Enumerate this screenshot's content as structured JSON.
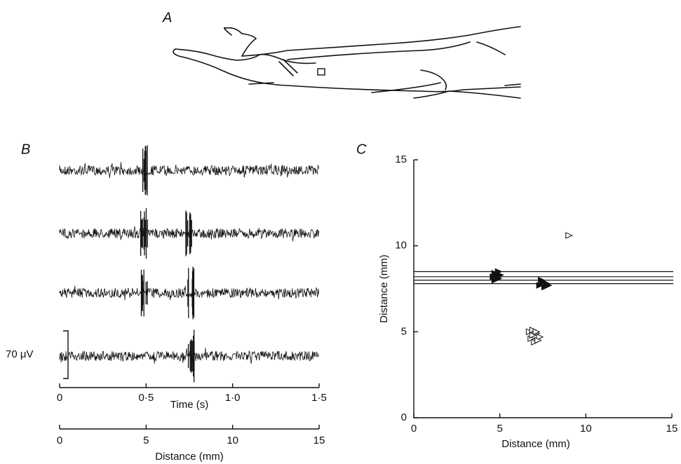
{
  "panel_labels": {
    "a": "A",
    "b": "B",
    "c": "C"
  },
  "chart_data": [
    {
      "type": "trace",
      "traces": [
        [
          0.48
        ],
        [
          0.48,
          0.74
        ],
        [
          0.48,
          0.75
        ],
        [
          0.75
        ]
      ],
      "scale_label": "70 μV",
      "xlim": [
        0,
        1.5
      ],
      "xticks": [
        0,
        {
          "value": 0.5,
          "label": "0·5"
        },
        {
          "value": 1.0,
          "label": "1·0"
        },
        {
          "value": 1.5,
          "label": "1·5"
        }
      ],
      "xlabel": "Time (s)",
      "x2lim": [
        0,
        15
      ],
      "x2ticks": [
        0,
        5,
        10,
        15
      ],
      "x2label": "Distance (mm)"
    },
    {
      "type": "scatter",
      "xlim": [
        0,
        15
      ],
      "ylim": [
        0,
        15
      ],
      "xticks": [
        0,
        5,
        10,
        15
      ],
      "yticks": [
        0,
        5,
        10,
        15
      ],
      "xlabel": "Distance (mm)",
      "ylabel": "Distance (mm)",
      "hlines": [
        7.8,
        8.0,
        8.2,
        8.5
      ],
      "series": [
        {
          "marker": "filled",
          "color": "#111111",
          "x": [
            4.6,
            4.7,
            4.8,
            4.9,
            5.0,
            4.7,
            4.9,
            7.3,
            7.5,
            7.6,
            7.8,
            7.4,
            7.7
          ],
          "y": [
            8.2,
            8.4,
            8.3,
            8.1,
            8.3,
            8.0,
            8.5,
            7.7,
            7.9,
            7.6,
            7.7,
            8.0,
            7.8
          ]
        },
        {
          "marker": "open",
          "color": "#111111",
          "x": [
            6.7,
            6.9,
            7.1,
            7.3,
            6.8,
            7.0,
            7.2,
            6.9,
            7.1,
            9.0
          ],
          "y": [
            5.0,
            5.1,
            4.9,
            4.7,
            4.6,
            4.4,
            4.5,
            4.8,
            5.0,
            10.6
          ]
        }
      ]
    }
  ]
}
